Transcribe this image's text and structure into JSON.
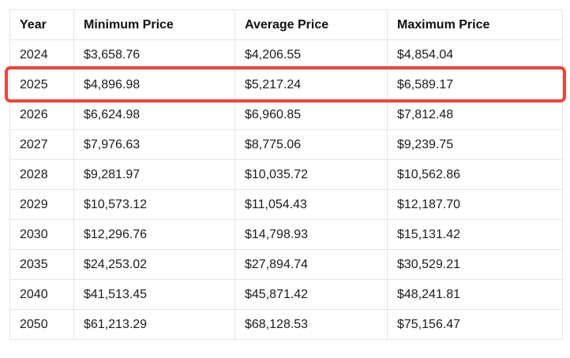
{
  "table": {
    "columns": [
      "Year",
      "Minimum Price",
      "Average Price",
      "Maximum Price"
    ],
    "rows": [
      {
        "year": "2024",
        "min": "$3,658.76",
        "avg": "$4,206.55",
        "max": "$4,854.04"
      },
      {
        "year": "2025",
        "min": "$4,896.98",
        "avg": "$5,217.24",
        "max": "$6,589.17"
      },
      {
        "year": "2026",
        "min": "$6,624.98",
        "avg": "$6,960.85",
        "max": "$7,812.48"
      },
      {
        "year": "2027",
        "min": "$7,976.63",
        "avg": "$8,775.06",
        "max": "$9,239.75"
      },
      {
        "year": "2028",
        "min": "$9,281.97",
        "avg": "$10,035.72",
        "max": "$10,562.86"
      },
      {
        "year": "2029",
        "min": "$10,573.12",
        "avg": "$11,054.43",
        "max": "$12,187.70"
      },
      {
        "year": "2030",
        "min": "$12,296.76",
        "avg": "$14,798.93",
        "max": "$15,131.42"
      },
      {
        "year": "2035",
        "min": "$24,253.02",
        "avg": "$27,894.74",
        "max": "$30,529.21"
      },
      {
        "year": "2040",
        "min": "$41,513.45",
        "avg": "$45,871.42",
        "max": "$48,241.81"
      },
      {
        "year": "2050",
        "min": "$61,213.29",
        "avg": "$68,128.53",
        "max": "$75,156.47"
      }
    ],
    "highlighted_year": "2025",
    "highlight_color": "#e8463f",
    "border_color": "#e4e4e4",
    "text_color": "#1b1b1b"
  },
  "chart_data": {
    "type": "table",
    "title": "",
    "columns": [
      "Year",
      "Minimum Price",
      "Average Price",
      "Maximum Price"
    ],
    "categories": [
      "2024",
      "2025",
      "2026",
      "2027",
      "2028",
      "2029",
      "2030",
      "2035",
      "2040",
      "2050"
    ],
    "series": [
      {
        "name": "Minimum Price",
        "values": [
          3658.76,
          4896.98,
          6624.98,
          7976.63,
          9281.97,
          10573.12,
          12296.76,
          24253.02,
          41513.45,
          61213.29
        ]
      },
      {
        "name": "Average Price",
        "values": [
          4206.55,
          5217.24,
          6960.85,
          8775.06,
          10035.72,
          11054.43,
          14798.93,
          27894.74,
          45871.42,
          68128.53
        ]
      },
      {
        "name": "Maximum Price",
        "values": [
          4854.04,
          6589.17,
          7812.48,
          9239.75,
          10562.86,
          12187.7,
          15131.42,
          30529.21,
          48241.81,
          75156.47
        ]
      }
    ],
    "highlighted_row": "2025",
    "grid": true,
    "legend_position": "none"
  }
}
